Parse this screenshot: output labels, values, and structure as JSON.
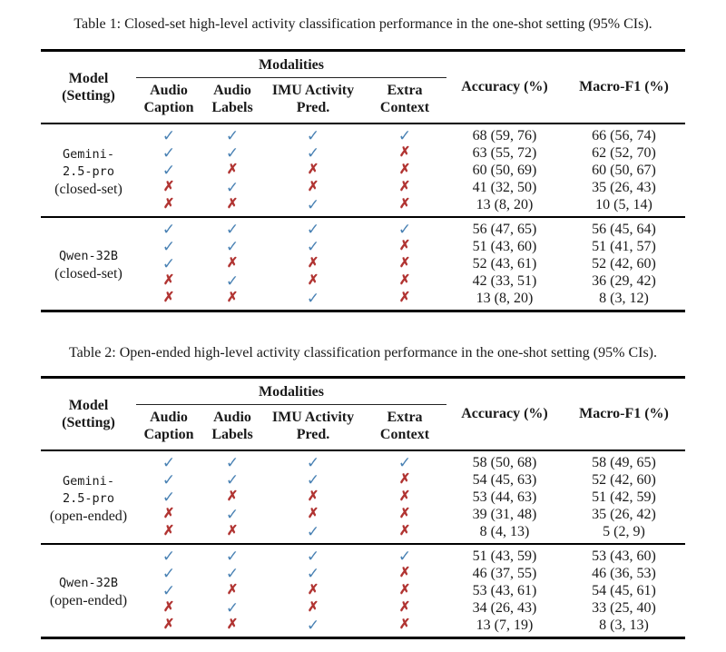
{
  "colors": {
    "check": "#4a82b4",
    "cross": "#b13432",
    "rule": "#000000",
    "background": "#ffffff"
  },
  "tables": [
    {
      "caption": "Table 1: Closed-set high-level activity classification performance in the one-shot setting (95% CIs).",
      "header": {
        "model_line1": "Model",
        "model_line2": "(Setting)",
        "modalities": "Modalities",
        "subcols": [
          {
            "line1": "Audio",
            "line2": "Caption"
          },
          {
            "line1": "Audio",
            "line2": "Labels"
          },
          {
            "line1": "IMU Activity",
            "line2": "Pred."
          },
          {
            "line1": "Extra",
            "line2": "Context"
          }
        ],
        "accuracy": "Accuracy (%)",
        "macro_f1": "Macro-F1 (%)"
      },
      "groups": [
        {
          "model_lines": [
            "Gemini-",
            "2.5-pro"
          ],
          "setting": "(closed-set)",
          "rows": [
            {
              "marks": [
                "✓",
                "✓",
                "✓",
                "✓"
              ],
              "accuracy": "68 (59, 76)",
              "macro_f1": "66 (56, 74)"
            },
            {
              "marks": [
                "✓",
                "✓",
                "✓",
                "✗"
              ],
              "accuracy": "63 (55, 72)",
              "macro_f1": "62 (52, 70)"
            },
            {
              "marks": [
                "✓",
                "✗",
                "✗",
                "✗"
              ],
              "accuracy": "60 (50, 69)",
              "macro_f1": "60 (50, 67)"
            },
            {
              "marks": [
                "✗",
                "✓",
                "✗",
                "✗"
              ],
              "accuracy": "41 (32, 50)",
              "macro_f1": "35 (26, 43)"
            },
            {
              "marks": [
                "✗",
                "✗",
                "✓",
                "✗"
              ],
              "accuracy": "13 (8, 20)",
              "macro_f1": "10 (5, 14)"
            }
          ]
        },
        {
          "model_lines": [
            "Qwen-32B"
          ],
          "setting": "(closed-set)",
          "rows": [
            {
              "marks": [
                "✓",
                "✓",
                "✓",
                "✓"
              ],
              "accuracy": "56 (47, 65)",
              "macro_f1": "56 (45, 64)"
            },
            {
              "marks": [
                "✓",
                "✓",
                "✓",
                "✗"
              ],
              "accuracy": "51 (43, 60)",
              "macro_f1": "51 (41, 57)"
            },
            {
              "marks": [
                "✓",
                "✗",
                "✗",
                "✗"
              ],
              "accuracy": "52 (43, 61)",
              "macro_f1": "52 (42, 60)"
            },
            {
              "marks": [
                "✗",
                "✓",
                "✗",
                "✗"
              ],
              "accuracy": "42 (33, 51)",
              "macro_f1": "36 (29, 42)"
            },
            {
              "marks": [
                "✗",
                "✗",
                "✓",
                "✗"
              ],
              "accuracy": "13 (8, 20)",
              "macro_f1": "8 (3, 12)"
            }
          ]
        }
      ]
    },
    {
      "caption": "Table 2: Open-ended high-level activity classification performance in the one-shot setting (95% CIs).",
      "header": {
        "model_line1": "Model",
        "model_line2": "(Setting)",
        "modalities": "Modalities",
        "subcols": [
          {
            "line1": "Audio",
            "line2": "Caption"
          },
          {
            "line1": "Audio",
            "line2": "Labels"
          },
          {
            "line1": "IMU Activity",
            "line2": "Pred."
          },
          {
            "line1": "Extra",
            "line2": "Context"
          }
        ],
        "accuracy": "Accuracy (%)",
        "macro_f1": "Macro-F1 (%)"
      },
      "groups": [
        {
          "model_lines": [
            "Gemini-",
            "2.5-pro"
          ],
          "setting": "(open-ended)",
          "rows": [
            {
              "marks": [
                "✓",
                "✓",
                "✓",
                "✓"
              ],
              "accuracy": "58 (50, 68)",
              "macro_f1": "58 (49, 65)"
            },
            {
              "marks": [
                "✓",
                "✓",
                "✓",
                "✗"
              ],
              "accuracy": "54 (45, 63)",
              "macro_f1": "52 (42, 60)"
            },
            {
              "marks": [
                "✓",
                "✗",
                "✗",
                "✗"
              ],
              "accuracy": "53 (44, 63)",
              "macro_f1": "51 (42, 59)"
            },
            {
              "marks": [
                "✗",
                "✓",
                "✗",
                "✗"
              ],
              "accuracy": "39 (31, 48)",
              "macro_f1": "35 (26, 42)"
            },
            {
              "marks": [
                "✗",
                "✗",
                "✓",
                "✗"
              ],
              "accuracy": "8 (4, 13)",
              "macro_f1": "5 (2, 9)"
            }
          ]
        },
        {
          "model_lines": [
            "Qwen-32B"
          ],
          "setting": "(open-ended)",
          "rows": [
            {
              "marks": [
                "✓",
                "✓",
                "✓",
                "✓"
              ],
              "accuracy": "51 (43, 59)",
              "macro_f1": "53 (43, 60)"
            },
            {
              "marks": [
                "✓",
                "✓",
                "✓",
                "✗"
              ],
              "accuracy": "46 (37, 55)",
              "macro_f1": "46 (36, 53)"
            },
            {
              "marks": [
                "✓",
                "✗",
                "✗",
                "✗"
              ],
              "accuracy": "53 (43, 61)",
              "macro_f1": "54 (45, 61)"
            },
            {
              "marks": [
                "✗",
                "✓",
                "✗",
                "✗"
              ],
              "accuracy": "34 (26, 43)",
              "macro_f1": "33 (25, 40)"
            },
            {
              "marks": [
                "✗",
                "✗",
                "✓",
                "✗"
              ],
              "accuracy": "13 (7, 19)",
              "macro_f1": "8 (3, 13)"
            }
          ]
        }
      ]
    }
  ]
}
